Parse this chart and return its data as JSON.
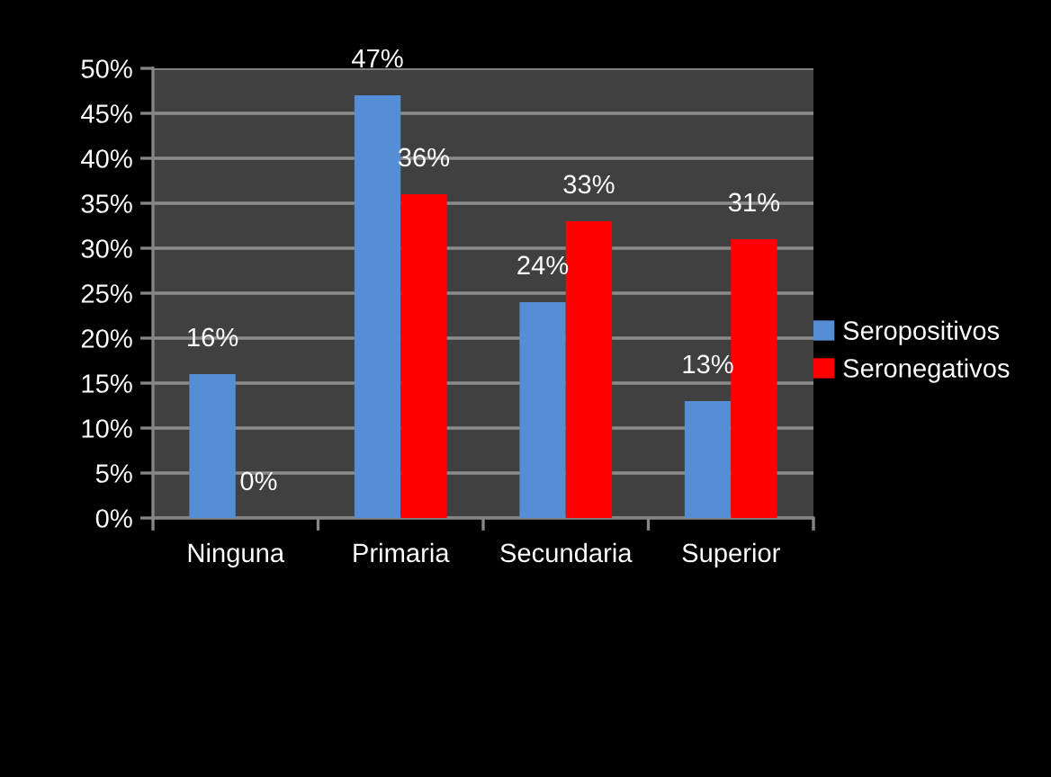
{
  "chart_data": {
    "type": "bar",
    "categories": [
      "Ninguna",
      "Primaria",
      "Secundaria",
      "Superior"
    ],
    "series": [
      {
        "name": "Seropositivos",
        "color": "#558ed5",
        "values": [
          16,
          47,
          24,
          13
        ],
        "value_labels": [
          "16%",
          "47%",
          "24%",
          "13%"
        ]
      },
      {
        "name": "Seronegativos",
        "color": "#ff0000",
        "values": [
          0,
          36,
          33,
          31
        ],
        "value_labels": [
          "0%",
          "36%",
          "33%",
          "31%"
        ]
      }
    ],
    "ylim": [
      0,
      50
    ],
    "yticks": [
      {
        "value": 0,
        "label": "0%"
      },
      {
        "value": 5,
        "label": "5%"
      },
      {
        "value": 10,
        "label": "10%"
      },
      {
        "value": 15,
        "label": "15%"
      },
      {
        "value": 20,
        "label": "20%"
      },
      {
        "value": 25,
        "label": "25%"
      },
      {
        "value": 30,
        "label": "30%"
      },
      {
        "value": 35,
        "label": "35%"
      },
      {
        "value": 40,
        "label": "40%"
      },
      {
        "value": 45,
        "label": "45%"
      },
      {
        "value": 50,
        "label": "50%"
      }
    ],
    "grid": "y",
    "legend": "right"
  }
}
